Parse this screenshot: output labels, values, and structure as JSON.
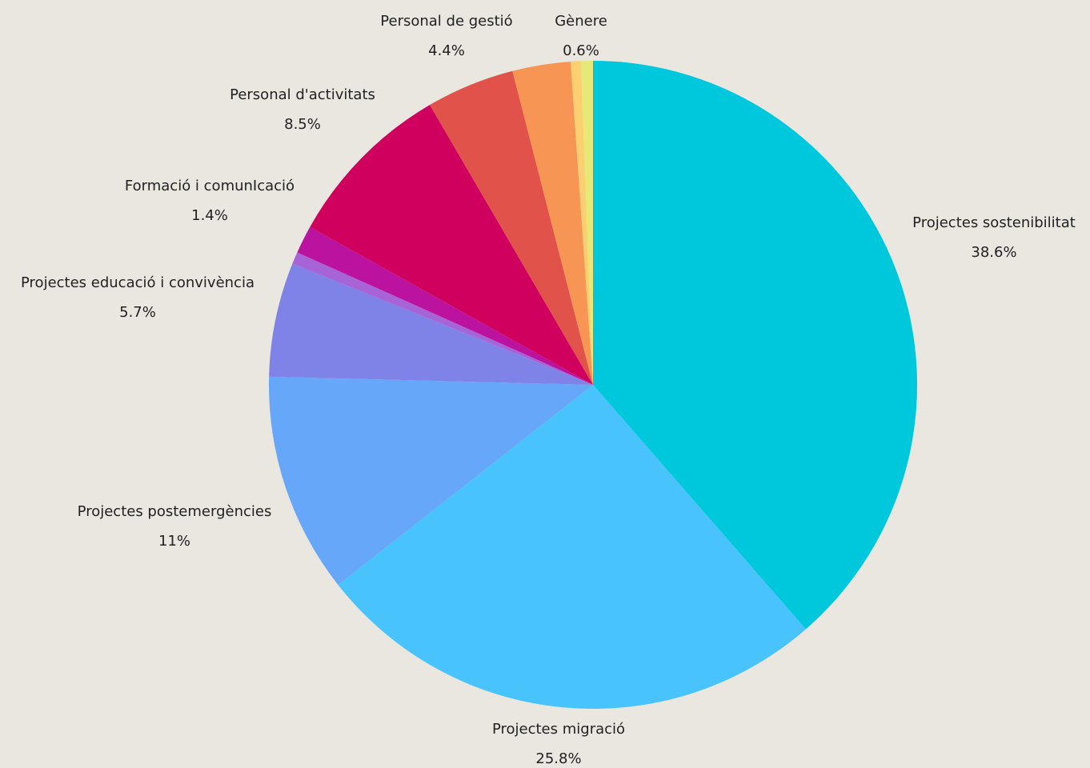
{
  "chart_data": {
    "type": "pie",
    "title": "",
    "start_angle_deg": 0,
    "direction": "clockwise",
    "slices": [
      {
        "label": "Projectes sostenibilitat",
        "value": 38.6,
        "value_label": "38.6%",
        "color": "#00C8DC"
      },
      {
        "label": "Projectes migració",
        "value": 25.8,
        "value_label": "25.8%",
        "color": "#48C3FC"
      },
      {
        "label": "Projectes postemergències",
        "value": 11,
        "value_label": "11%",
        "color": "#66A7F9"
      },
      {
        "label": "Projectes educació i convivència",
        "value": 5.7,
        "value_label": "5.7%",
        "color": "#7F82E6"
      },
      {
        "label": "",
        "value": 0.6,
        "value_label": "",
        "color": "#A764D6"
      },
      {
        "label": "Formació i comunIcació",
        "value": 1.4,
        "value_label": "1.4%",
        "color": "#BC12A0"
      },
      {
        "label": "Personal d'activitats",
        "value": 8.5,
        "value_label": "8.5%",
        "color": "#D0015E"
      },
      {
        "label": "Personal de gestió",
        "value": 4.4,
        "value_label": "4.4%",
        "color": "#E0524A"
      },
      {
        "label": "",
        "value": 2.9,
        "value_label": "",
        "color": "#F79554"
      },
      {
        "label": "",
        "value": 0.5,
        "value_label": "",
        "color": "#FCD071"
      },
      {
        "label": "Gènere",
        "value": 0.6,
        "value_label": "0.6%",
        "color": "#E6E978"
      }
    ],
    "legend": "none"
  }
}
